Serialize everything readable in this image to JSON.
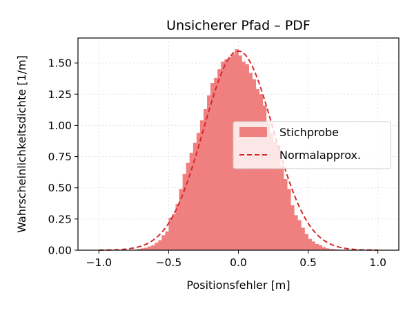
{
  "chart_data": {
    "type": "bar",
    "title": "Unsicherer Pfad – PDF",
    "xlabel": "Positionsfehler [m]",
    "ylabel": "Wahrscheinlichkeitsdichte [1/m]",
    "xlim": [
      -1.15,
      1.15
    ],
    "ylim": [
      0,
      1.7
    ],
    "xticks": [
      -1.0,
      -0.5,
      0.0,
      0.5,
      1.0
    ],
    "xtick_labels": [
      "−1.0",
      "−0.5",
      "0.0",
      "0.5",
      "1.0"
    ],
    "yticks": [
      0.0,
      0.25,
      0.5,
      0.75,
      1.0,
      1.25,
      1.5
    ],
    "ytick_labels": [
      "0.00",
      "0.25",
      "0.50",
      "0.75",
      "1.00",
      "1.25",
      "1.50"
    ],
    "grid": true,
    "legend": {
      "placement": "center-right",
      "entries": [
        "Stichprobe",
        "Normalapprox."
      ]
    },
    "series": [
      {
        "name": "Stichprobe",
        "type": "histogram",
        "color": "#f08080",
        "bin_width": 0.025,
        "x": [
          -0.75,
          -0.725,
          -0.7,
          -0.675,
          -0.65,
          -0.625,
          -0.6,
          -0.575,
          -0.55,
          -0.525,
          -0.5,
          -0.475,
          -0.45,
          -0.425,
          -0.4,
          -0.375,
          -0.35,
          -0.325,
          -0.3,
          -0.275,
          -0.25,
          -0.225,
          -0.2,
          -0.175,
          -0.15,
          -0.125,
          -0.1,
          -0.075,
          -0.05,
          -0.025,
          0.0,
          0.025,
          0.05,
          0.075,
          0.1,
          0.125,
          0.15,
          0.175,
          0.2,
          0.225,
          0.25,
          0.275,
          0.3,
          0.325,
          0.35,
          0.375,
          0.4,
          0.425,
          0.45,
          0.475,
          0.5,
          0.525,
          0.55,
          0.575,
          0.6,
          0.625,
          0.65,
          0.675,
          0.7,
          0.725
        ],
        "values": [
          0.005,
          0.01,
          0.015,
          0.02,
          0.03,
          0.04,
          0.06,
          0.08,
          0.12,
          0.15,
          0.26,
          0.29,
          0.37,
          0.49,
          0.61,
          0.7,
          0.78,
          0.86,
          0.94,
          1.04,
          1.13,
          1.24,
          1.34,
          1.38,
          1.45,
          1.51,
          1.53,
          1.55,
          1.57,
          1.61,
          1.56,
          1.51,
          1.49,
          1.42,
          1.37,
          1.29,
          1.25,
          1.16,
          1.02,
          0.94,
          0.87,
          0.84,
          0.68,
          0.57,
          0.49,
          0.36,
          0.28,
          0.24,
          0.18,
          0.13,
          0.09,
          0.07,
          0.05,
          0.04,
          0.025,
          0.015,
          0.01,
          0.008,
          0.005,
          0.003
        ]
      },
      {
        "name": "Normalapprox.",
        "type": "line",
        "style": "dashed",
        "color": "#d62728",
        "mean": 0.0,
        "std": 0.25,
        "x_range": [
          -1.0,
          1.0
        ]
      }
    ]
  }
}
